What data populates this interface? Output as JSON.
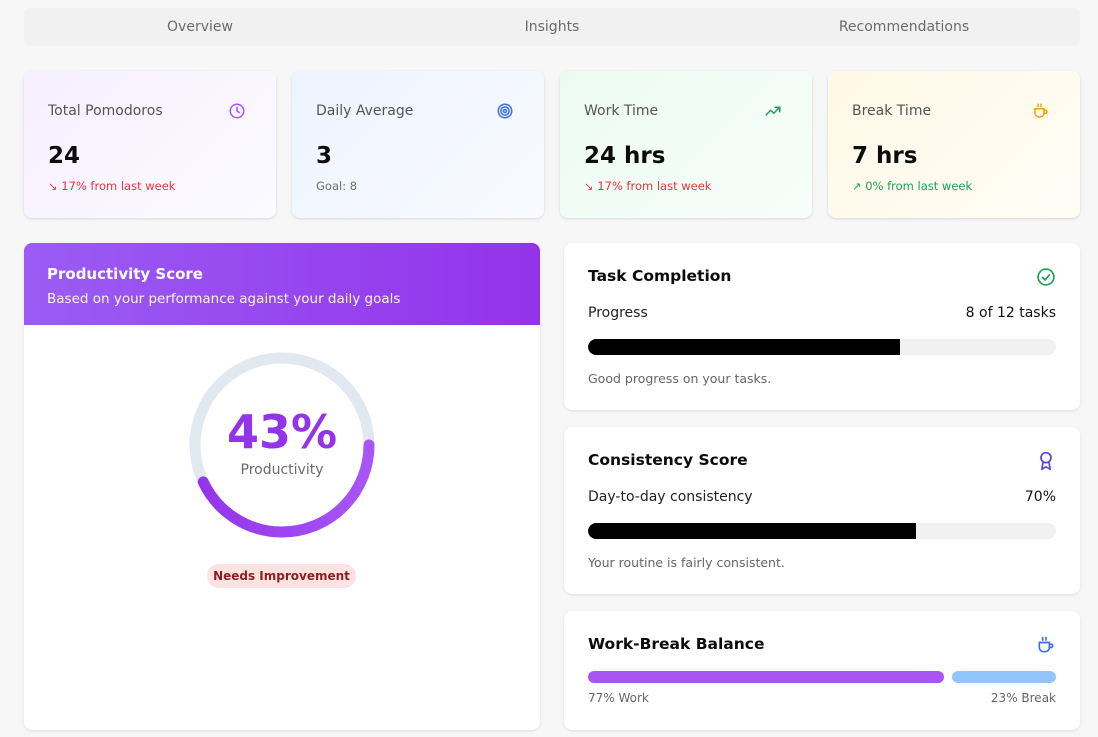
{
  "tabs": [
    "Overview",
    "Insights",
    "Recommendations"
  ],
  "stats": [
    {
      "label": "Total Pomodoros",
      "icon": "clock-icon",
      "value": "24",
      "arrow": "↘",
      "sub": "17% from last week",
      "tone": "red",
      "color": "#a855f7"
    },
    {
      "label": "Daily Average",
      "icon": "target-icon",
      "value": "3",
      "arrow": "",
      "sub": "Goal: 8",
      "tone": "gray",
      "color": "#3b6fe6"
    },
    {
      "label": "Work Time",
      "icon": "trending-up-icon",
      "value": "24 hrs",
      "arrow": "↘",
      "sub": "17% from last week",
      "tone": "red",
      "color": "#1aa155"
    },
    {
      "label": "Break Time",
      "icon": "coffee-icon",
      "value": "7 hrs",
      "arrow": "↗",
      "sub": "0% from last week",
      "tone": "green",
      "color": "#f59e0b"
    }
  ],
  "productivity": {
    "title": "Productivity Score",
    "description": "Based on your performance against your daily goals",
    "value_text": "43%",
    "value": 43,
    "label": "Productivity",
    "badge": "Needs Improvement"
  },
  "task_completion": {
    "title": "Task Completion",
    "icon": "check-circle-icon",
    "label": "Progress",
    "value_text": "8 of 12 tasks",
    "completed": 8,
    "total": 12,
    "note": "Good progress on your tasks."
  },
  "consistency": {
    "title": "Consistency Score",
    "icon": "award-icon",
    "label": "Day-to-day consistency",
    "value_text": "70%",
    "value": 70,
    "note": "Your routine is fairly consistent."
  },
  "balance": {
    "title": "Work-Break Balance",
    "icon": "coffee-icon",
    "work_percent": 77,
    "break_percent": 23,
    "work_label": "77% Work",
    "break_label": "23% Break"
  }
}
